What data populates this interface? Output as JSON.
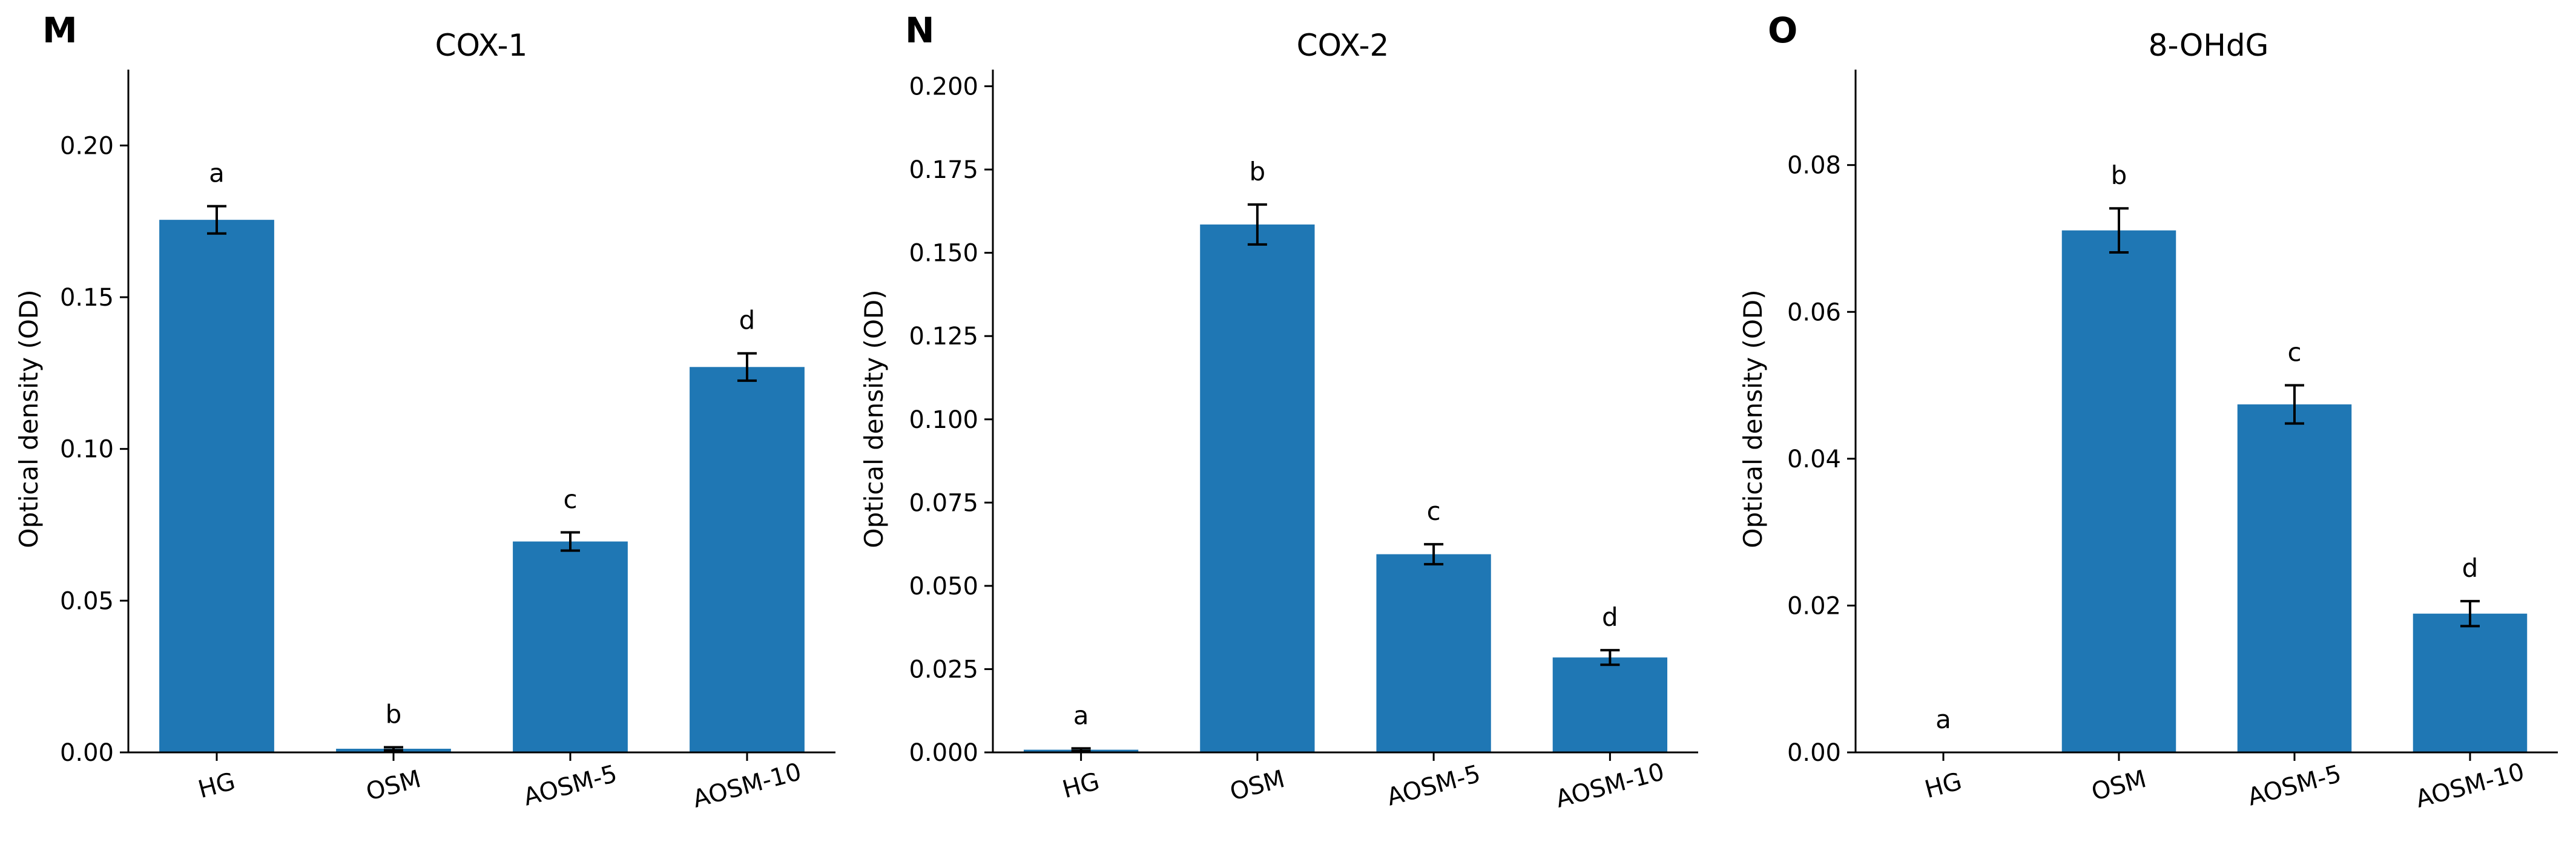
{
  "figure": {
    "bar_color": "#1f77b4",
    "error_color": "#000000",
    "panels": [
      {
        "letter": "M"
      },
      {
        "letter": "N"
      },
      {
        "letter": "O"
      }
    ]
  },
  "chart_data": [
    {
      "type": "bar",
      "title": "COX-1",
      "ylabel": "Optical density (OD)",
      "xlabel": "",
      "categories": [
        "HG",
        "OSM",
        "AOSM-5",
        "AOSM-10"
      ],
      "values": [
        0.1755,
        0.0012,
        0.0695,
        0.127
      ],
      "errors": [
        0.0045,
        0.0005,
        0.003,
        0.0045
      ],
      "significance": [
        "a",
        "b",
        "c",
        "d"
      ],
      "ylim": [
        0,
        0.225
      ],
      "yticks": [
        0.0,
        0.05,
        0.1,
        0.15,
        0.2
      ],
      "ytick_labels": [
        "0.00",
        "0.05",
        "0.10",
        "0.15",
        "0.20"
      ],
      "grid": false
    },
    {
      "type": "bar",
      "title": "COX-2",
      "ylabel": "Optical density (OD)",
      "xlabel": "",
      "categories": [
        "HG",
        "OSM",
        "AOSM-5",
        "AOSM-10"
      ],
      "values": [
        0.0008,
        0.1585,
        0.0595,
        0.0285
      ],
      "errors": [
        0.0004,
        0.006,
        0.003,
        0.0022
      ],
      "significance": [
        "a",
        "b",
        "c",
        "d"
      ],
      "ylim": [
        0,
        0.205
      ],
      "yticks": [
        0.0,
        0.025,
        0.05,
        0.075,
        0.1,
        0.125,
        0.15,
        0.175,
        0.2
      ],
      "ytick_labels": [
        "0.000",
        "0.025",
        "0.050",
        "0.075",
        "0.100",
        "0.125",
        "0.150",
        "0.175",
        "0.200"
      ],
      "grid": false
    },
    {
      "type": "bar",
      "title": "8-OHdG",
      "ylabel": "Optical density (OD)",
      "xlabel": "",
      "categories": [
        "HG",
        "OSM",
        "AOSM-5",
        "AOSM-10"
      ],
      "values": [
        0.0,
        0.0711,
        0.0474,
        0.0189
      ],
      "errors": [
        0.0,
        0.003,
        0.0026,
        0.0017
      ],
      "significance": [
        "a",
        "b",
        "c",
        "d"
      ],
      "ylim": [
        0,
        0.093
      ],
      "yticks": [
        0.0,
        0.02,
        0.04,
        0.06,
        0.08
      ],
      "ytick_labels": [
        "0.00",
        "0.02",
        "0.04",
        "0.06",
        "0.08"
      ],
      "grid": false
    }
  ]
}
